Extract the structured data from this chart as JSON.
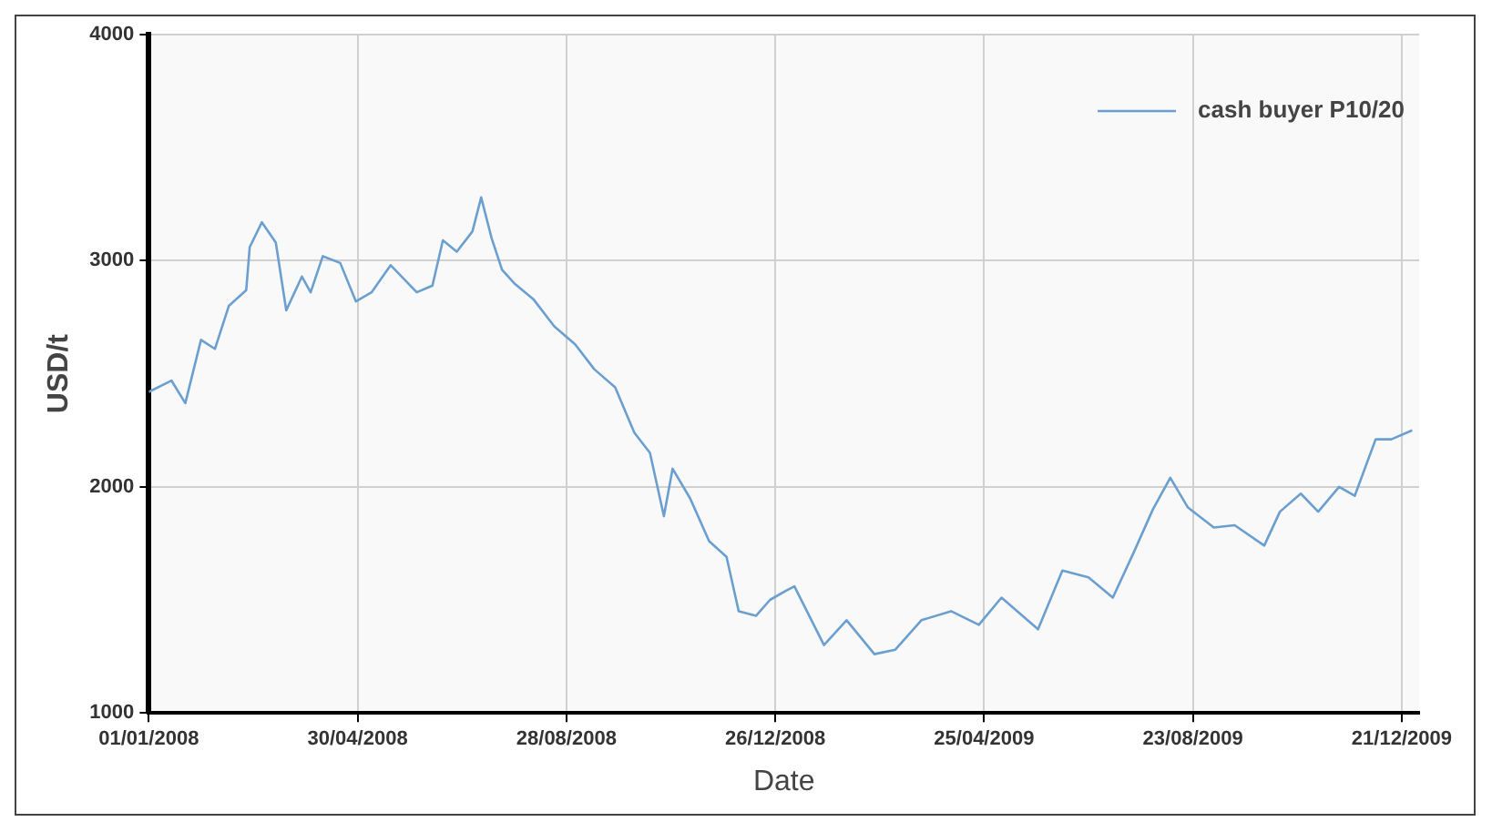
{
  "chart_data": {
    "type": "line",
    "xlabel": "Date",
    "ylabel": "USD/t",
    "xlim": [
      "2008-01-01",
      "2009-12-31"
    ],
    "xticks": [
      {
        "value": "2008-01-01",
        "label": "01/01/2008"
      },
      {
        "value": "2008-04-30",
        "label": "30/04/2008"
      },
      {
        "value": "2008-08-28",
        "label": "28/08/2008"
      },
      {
        "value": "2008-12-26",
        "label": "26/12/2008"
      },
      {
        "value": "2009-04-25",
        "label": "25/04/2009"
      },
      {
        "value": "2009-08-23",
        "label": "23/08/2009"
      },
      {
        "value": "2009-12-21",
        "label": "21/12/2009"
      }
    ],
    "ylim": [
      1000,
      4000
    ],
    "yticks": [
      1000,
      2000,
      3000,
      4000
    ],
    "grid": true,
    "legend": "top right",
    "marker": "none",
    "line_style": "solid",
    "series": [
      {
        "name": "cash buyer P10/20",
        "color": "#6a9fd0",
        "x": [
          "2008-01-01",
          "2008-01-14",
          "2008-01-22",
          "2008-01-31",
          "2008-02-08",
          "2008-02-16",
          "2008-02-26",
          "2008-02-28",
          "2008-03-06",
          "2008-03-14",
          "2008-03-20",
          "2008-03-29",
          "2008-04-03",
          "2008-04-10",
          "2008-04-20",
          "2008-04-29",
          "2008-05-08",
          "2008-05-19",
          "2008-06-03",
          "2008-06-12",
          "2008-06-18",
          "2008-06-26",
          "2008-07-05",
          "2008-07-10",
          "2008-07-16",
          "2008-07-22",
          "2008-07-29",
          "2008-08-09",
          "2008-08-21",
          "2008-09-02",
          "2008-09-13",
          "2008-09-25",
          "2008-10-06",
          "2008-10-15",
          "2008-10-23",
          "2008-10-28",
          "2008-11-07",
          "2008-11-18",
          "2008-11-28",
          "2008-12-05",
          "2008-12-15",
          "2008-12-23",
          "2009-01-01",
          "2009-01-06",
          "2009-01-23",
          "2009-02-05",
          "2009-02-21",
          "2009-03-05",
          "2009-03-20",
          "2009-04-06",
          "2009-04-22",
          "2009-05-05",
          "2009-05-26",
          "2009-06-09",
          "2009-06-24",
          "2009-07-08",
          "2009-07-20",
          "2009-07-31",
          "2009-08-10",
          "2009-08-20",
          "2009-09-04",
          "2009-09-16",
          "2009-10-03",
          "2009-10-12",
          "2009-10-24",
          "2009-11-03",
          "2009-11-15",
          "2009-11-24",
          "2009-12-06",
          "2009-12-15",
          "2009-12-27"
        ],
        "values": [
          2420,
          2470,
          2370,
          2650,
          2610,
          2800,
          2870,
          3060,
          3170,
          3080,
          2780,
          2930,
          2860,
          3020,
          2990,
          2820,
          2860,
          2980,
          2860,
          2890,
          3090,
          3040,
          3130,
          3280,
          3100,
          2960,
          2900,
          2830,
          2710,
          2630,
          2520,
          2440,
          2240,
          2150,
          1870,
          2080,
          1950,
          1760,
          1690,
          1450,
          1430,
          1500,
          1540,
          1560,
          1300,
          1410,
          1260,
          1280,
          1410,
          1450,
          1390,
          1510,
          1370,
          1630,
          1600,
          1510,
          1710,
          1900,
          2040,
          1910,
          1820,
          1830,
          1740,
          1890,
          1970,
          1890,
          2000,
          1960,
          2210,
          2210,
          2250
        ]
      }
    ]
  }
}
